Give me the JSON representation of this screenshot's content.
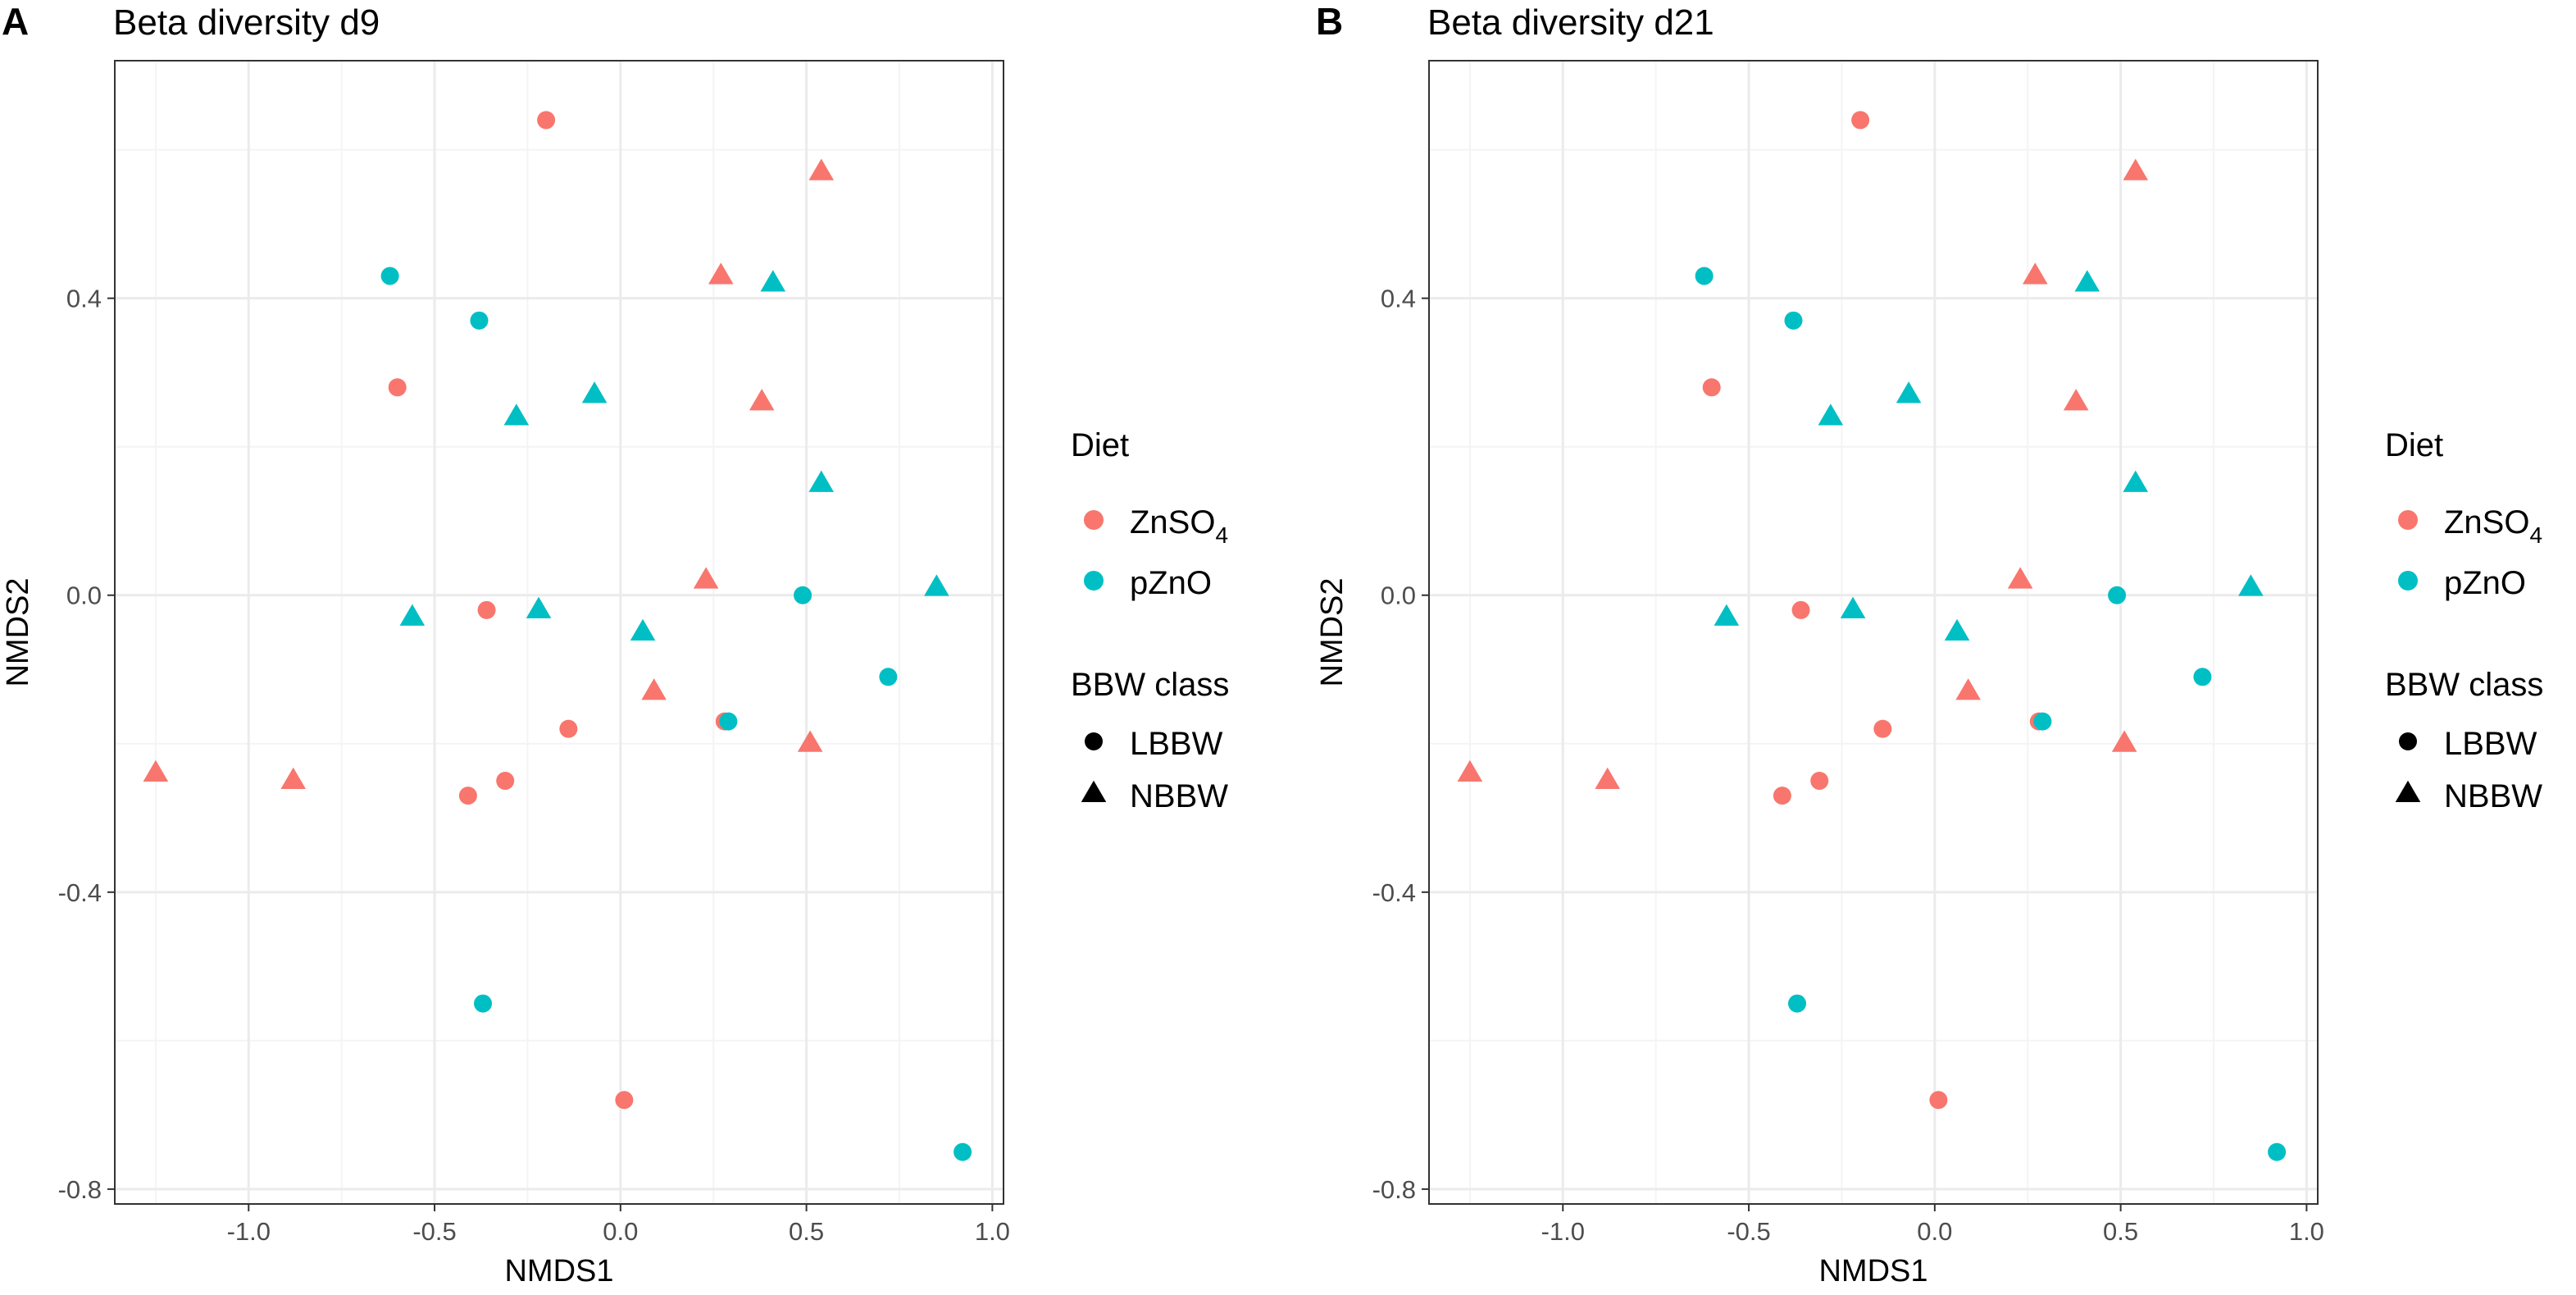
{
  "legend": {
    "diet_title": "Diet",
    "diet_items": [
      {
        "label": "ZnSO",
        "sub": "4",
        "color": "#F8766D"
      },
      {
        "label": "pZnO",
        "sub": "",
        "color": "#00BFC4"
      }
    ],
    "class_title": "BBW class",
    "class_items": [
      {
        "label": "LBBW",
        "shape": "circle"
      },
      {
        "label": "NBBW",
        "shape": "triangle"
      }
    ]
  },
  "colors": {
    "ZnSO4": "#F8766D",
    "pZnO": "#00BFC4",
    "grid_major": "#EBEBEB",
    "grid_minor": "#F4F4F4",
    "panel_border": "#333333",
    "tick_text": "#4D4D4D"
  },
  "chart_data": [
    {
      "type": "scatter",
      "letter": "A",
      "title": "Beta diversity d9",
      "xlabel": "NMDS1",
      "ylabel": "NMDS2",
      "xlim": [
        -1.36,
        1.03
      ],
      "ylim": [
        -0.82,
        0.72
      ],
      "xticks": [
        -1.0,
        -0.5,
        0.0,
        0.5,
        1.0
      ],
      "xtick_labels": [
        "-1.0",
        "-0.5",
        "0.0",
        "0.5",
        "1.0"
      ],
      "yticks": [
        -0.8,
        -0.4,
        0.0,
        0.4
      ],
      "ytick_labels": [
        "-0.8",
        "-0.4",
        "0.0",
        "0.4"
      ],
      "grid": true,
      "legend_position": "right",
      "points": [
        {
          "x": -0.2,
          "y": 0.64,
          "diet": "ZnSO4",
          "bbw": "LBBW"
        },
        {
          "x": -0.6,
          "y": 0.28,
          "diet": "ZnSO4",
          "bbw": "LBBW"
        },
        {
          "x": -0.36,
          "y": -0.02,
          "diet": "ZnSO4",
          "bbw": "LBBW"
        },
        {
          "x": -0.14,
          "y": -0.18,
          "diet": "ZnSO4",
          "bbw": "LBBW"
        },
        {
          "x": -0.31,
          "y": -0.25,
          "diet": "ZnSO4",
          "bbw": "LBBW"
        },
        {
          "x": -0.41,
          "y": -0.27,
          "diet": "ZnSO4",
          "bbw": "LBBW"
        },
        {
          "x": 0.28,
          "y": -0.17,
          "diet": "ZnSO4",
          "bbw": "LBBW"
        },
        {
          "x": 0.01,
          "y": -0.68,
          "diet": "ZnSO4",
          "bbw": "LBBW"
        },
        {
          "x": 0.54,
          "y": 0.57,
          "diet": "ZnSO4",
          "bbw": "NBBW"
        },
        {
          "x": 0.27,
          "y": 0.43,
          "diet": "ZnSO4",
          "bbw": "NBBW"
        },
        {
          "x": 0.38,
          "y": 0.26,
          "diet": "ZnSO4",
          "bbw": "NBBW"
        },
        {
          "x": 0.23,
          "y": 0.02,
          "diet": "ZnSO4",
          "bbw": "NBBW"
        },
        {
          "x": 0.09,
          "y": -0.13,
          "diet": "ZnSO4",
          "bbw": "NBBW"
        },
        {
          "x": 0.51,
          "y": -0.2,
          "diet": "ZnSO4",
          "bbw": "NBBW"
        },
        {
          "x": -1.25,
          "y": -0.24,
          "diet": "ZnSO4",
          "bbw": "NBBW"
        },
        {
          "x": -0.88,
          "y": -0.25,
          "diet": "ZnSO4",
          "bbw": "NBBW"
        },
        {
          "x": -0.62,
          "y": 0.43,
          "diet": "pZnO",
          "bbw": "LBBW"
        },
        {
          "x": -0.38,
          "y": 0.37,
          "diet": "pZnO",
          "bbw": "LBBW"
        },
        {
          "x": 0.49,
          "y": 0.0,
          "diet": "pZnO",
          "bbw": "LBBW"
        },
        {
          "x": 0.72,
          "y": -0.11,
          "diet": "pZnO",
          "bbw": "LBBW"
        },
        {
          "x": 0.29,
          "y": -0.17,
          "diet": "pZnO",
          "bbw": "LBBW"
        },
        {
          "x": -0.37,
          "y": -0.55,
          "diet": "pZnO",
          "bbw": "LBBW"
        },
        {
          "x": 0.92,
          "y": -0.75,
          "diet": "pZnO",
          "bbw": "LBBW"
        },
        {
          "x": 0.41,
          "y": 0.42,
          "diet": "pZnO",
          "bbw": "NBBW"
        },
        {
          "x": -0.07,
          "y": 0.27,
          "diet": "pZnO",
          "bbw": "NBBW"
        },
        {
          "x": -0.28,
          "y": 0.24,
          "diet": "pZnO",
          "bbw": "NBBW"
        },
        {
          "x": 0.54,
          "y": 0.15,
          "diet": "pZnO",
          "bbw": "NBBW"
        },
        {
          "x": 0.85,
          "y": 0.01,
          "diet": "pZnO",
          "bbw": "NBBW"
        },
        {
          "x": -0.56,
          "y": -0.03,
          "diet": "pZnO",
          "bbw": "NBBW"
        },
        {
          "x": -0.22,
          "y": -0.02,
          "diet": "pZnO",
          "bbw": "NBBW"
        },
        {
          "x": 0.06,
          "y": -0.05,
          "diet": "pZnO",
          "bbw": "NBBW"
        }
      ]
    },
    {
      "type": "scatter",
      "letter": "B",
      "title": "Beta diversity d21",
      "xlabel": "NMDS1",
      "ylabel": "NMDS2",
      "xlim": [
        -1.36,
        1.03
      ],
      "ylim": [
        -0.82,
        0.72
      ],
      "xticks": [
        -1.0,
        -0.5,
        0.0,
        0.5,
        1.0
      ],
      "xtick_labels": [
        "-1.0",
        "-0.5",
        "0.0",
        "0.5",
        "1.0"
      ],
      "yticks": [
        -0.8,
        -0.4,
        0.0,
        0.4
      ],
      "ytick_labels": [
        "-0.8",
        "-0.4",
        "0.0",
        "0.4"
      ],
      "grid": true,
      "legend_position": "right",
      "points": [
        {
          "x": -0.2,
          "y": 0.64,
          "diet": "ZnSO4",
          "bbw": "LBBW"
        },
        {
          "x": -0.6,
          "y": 0.28,
          "diet": "ZnSO4",
          "bbw": "LBBW"
        },
        {
          "x": -0.36,
          "y": -0.02,
          "diet": "ZnSO4",
          "bbw": "LBBW"
        },
        {
          "x": -0.14,
          "y": -0.18,
          "diet": "ZnSO4",
          "bbw": "LBBW"
        },
        {
          "x": -0.31,
          "y": -0.25,
          "diet": "ZnSO4",
          "bbw": "LBBW"
        },
        {
          "x": -0.41,
          "y": -0.27,
          "diet": "ZnSO4",
          "bbw": "LBBW"
        },
        {
          "x": 0.28,
          "y": -0.17,
          "diet": "ZnSO4",
          "bbw": "LBBW"
        },
        {
          "x": 0.01,
          "y": -0.68,
          "diet": "ZnSO4",
          "bbw": "LBBW"
        },
        {
          "x": 0.54,
          "y": 0.57,
          "diet": "ZnSO4",
          "bbw": "NBBW"
        },
        {
          "x": 0.27,
          "y": 0.43,
          "diet": "ZnSO4",
          "bbw": "NBBW"
        },
        {
          "x": 0.38,
          "y": 0.26,
          "diet": "ZnSO4",
          "bbw": "NBBW"
        },
        {
          "x": 0.23,
          "y": 0.02,
          "diet": "ZnSO4",
          "bbw": "NBBW"
        },
        {
          "x": 0.09,
          "y": -0.13,
          "diet": "ZnSO4",
          "bbw": "NBBW"
        },
        {
          "x": 0.51,
          "y": -0.2,
          "diet": "ZnSO4",
          "bbw": "NBBW"
        },
        {
          "x": -1.25,
          "y": -0.24,
          "diet": "ZnSO4",
          "bbw": "NBBW"
        },
        {
          "x": -0.88,
          "y": -0.25,
          "diet": "ZnSO4",
          "bbw": "NBBW"
        },
        {
          "x": -0.62,
          "y": 0.43,
          "diet": "pZnO",
          "bbw": "LBBW"
        },
        {
          "x": -0.38,
          "y": 0.37,
          "diet": "pZnO",
          "bbw": "LBBW"
        },
        {
          "x": 0.49,
          "y": 0.0,
          "diet": "pZnO",
          "bbw": "LBBW"
        },
        {
          "x": 0.72,
          "y": -0.11,
          "diet": "pZnO",
          "bbw": "LBBW"
        },
        {
          "x": 0.29,
          "y": -0.17,
          "diet": "pZnO",
          "bbw": "LBBW"
        },
        {
          "x": -0.37,
          "y": -0.55,
          "diet": "pZnO",
          "bbw": "LBBW"
        },
        {
          "x": 0.92,
          "y": -0.75,
          "diet": "pZnO",
          "bbw": "LBBW"
        },
        {
          "x": 0.41,
          "y": 0.42,
          "diet": "pZnO",
          "bbw": "NBBW"
        },
        {
          "x": -0.07,
          "y": 0.27,
          "diet": "pZnO",
          "bbw": "NBBW"
        },
        {
          "x": -0.28,
          "y": 0.24,
          "diet": "pZnO",
          "bbw": "NBBW"
        },
        {
          "x": 0.54,
          "y": 0.15,
          "diet": "pZnO",
          "bbw": "NBBW"
        },
        {
          "x": 0.85,
          "y": 0.01,
          "diet": "pZnO",
          "bbw": "NBBW"
        },
        {
          "x": -0.56,
          "y": -0.03,
          "diet": "pZnO",
          "bbw": "NBBW"
        },
        {
          "x": -0.22,
          "y": -0.02,
          "diet": "pZnO",
          "bbw": "NBBW"
        },
        {
          "x": 0.06,
          "y": -0.05,
          "diet": "pZnO",
          "bbw": "NBBW"
        }
      ]
    }
  ]
}
